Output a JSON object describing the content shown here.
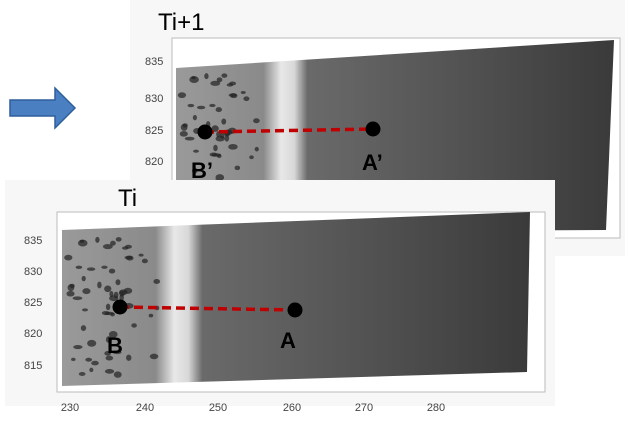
{
  "panels": [
    {
      "title": "Ti+1",
      "yticks": [
        "835",
        "830",
        "825",
        "820"
      ],
      "points": [
        {
          "label": "B’"
        },
        {
          "label": "A’"
        }
      ]
    },
    {
      "title": "Ti",
      "yticks": [
        "835",
        "830",
        "825",
        "820",
        "815"
      ],
      "xticks": [
        "230",
        "240",
        "250",
        "260",
        "270",
        "280"
      ],
      "points": [
        {
          "label": "B"
        },
        {
          "label": "A"
        }
      ]
    }
  ]
}
